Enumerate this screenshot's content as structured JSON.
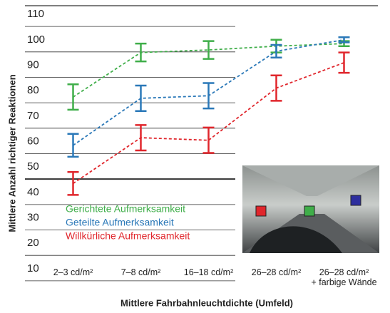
{
  "chart_data": {
    "type": "line",
    "y_label": "Mittlere Anzahl richtiger Reaktionen",
    "x_label": "Mittlere Fahrbahnleuchtdichte (Umfeld)",
    "categories": [
      "2–3 cd/m²",
      "7–8 cd/m²",
      "16–18 cd/m²",
      "26–28 cd/m²",
      "26–28 cd/m²\n+ farbige Wände"
    ],
    "series": [
      {
        "name": "Gerichtete Aufmerksamkeit",
        "color": "#3fae49",
        "values": [
          77.5,
          95,
          96,
          97.5,
          98.5
        ],
        "errors": [
          5,
          3.5,
          3.5,
          2.5,
          1
        ]
      },
      {
        "name": "Geteilte Aufmerksamkeit",
        "color": "#2a78b8",
        "values": [
          58.5,
          77,
          78,
          95.5,
          100
        ],
        "errors": [
          4.5,
          5,
          5,
          2.5,
          1
        ]
      },
      {
        "name": "Willkürliche Aufmerksamkeit",
        "color": "#e0262c",
        "values": [
          43.5,
          61.5,
          60.5,
          81,
          91
        ],
        "errors": [
          4.5,
          5,
          5,
          5,
          4
        ]
      }
    ],
    "ylim": [
      8,
      112
    ],
    "yticks": [
      10,
      20,
      30,
      40,
      50,
      60,
      70,
      80,
      90,
      100,
      110
    ],
    "grid": true
  }
}
